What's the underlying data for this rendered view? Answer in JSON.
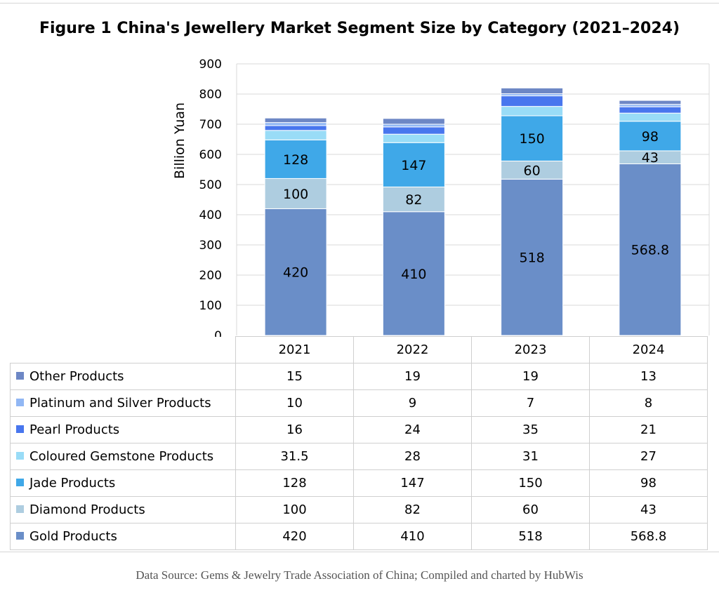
{
  "chart_data": {
    "type": "bar",
    "stacked": true,
    "title": "Figure 1 China's Jewellery Market Segment Size by Category (2021–2024)",
    "ylabel": "Billion Yuan",
    "xlabel": "",
    "ylim": [
      0,
      900
    ],
    "yticks": [
      "0",
      "100",
      "200",
      "300",
      "400",
      "500",
      "600",
      "700",
      "800",
      "900"
    ],
    "grid": true,
    "legend": "table-below",
    "categories": [
      "2021",
      "2022",
      "2023",
      "2024"
    ],
    "series": [
      {
        "name": "Gold Products",
        "color": "#6a8ec8",
        "values": [
          420,
          410,
          518,
          568.8
        ],
        "labels": [
          "420",
          "410",
          "518",
          "568.8"
        ],
        "show_labels": true
      },
      {
        "name": "Diamond Products",
        "color": "#aecde0",
        "values": [
          100,
          82,
          60,
          43
        ],
        "labels": [
          "100",
          "82",
          "60",
          "43"
        ],
        "show_labels": true
      },
      {
        "name": "Jade Products",
        "color": "#3fa8e8",
        "values": [
          128,
          147,
          150,
          98
        ],
        "labels": [
          "128",
          "147",
          "150",
          "98"
        ],
        "show_labels": true
      },
      {
        "name": "Coloured Gemstone Products",
        "color": "#99dcf7",
        "values": [
          31.5,
          28,
          31,
          27
        ],
        "labels": [
          "31.5",
          "28",
          "31",
          "27"
        ],
        "show_labels": false
      },
      {
        "name": "Pearl Products",
        "color": "#4876ee",
        "values": [
          16,
          24,
          35,
          21
        ],
        "labels": [
          "16",
          "24",
          "35",
          "21"
        ],
        "show_labels": false
      },
      {
        "name": "Platinum and Silver Products",
        "color": "#91b7f4",
        "values": [
          10,
          9,
          7,
          8
        ],
        "labels": [
          "10",
          "9",
          "7",
          "8"
        ],
        "show_labels": false
      },
      {
        "name": "Other Products",
        "color": "#6d87c5",
        "values": [
          15,
          19,
          19,
          13
        ],
        "labels": [
          "15",
          "19",
          "19",
          "13"
        ],
        "show_labels": false
      }
    ],
    "table_rows": [
      {
        "name": "Other Products",
        "color": "#6d87c5",
        "cells": [
          "15",
          "19",
          "19",
          "13"
        ]
      },
      {
        "name": "Platinum and Silver Products",
        "color": "#91b7f4",
        "cells": [
          "10",
          "9",
          "7",
          "8"
        ]
      },
      {
        "name": "Pearl Products",
        "color": "#4876ee",
        "cells": [
          "16",
          "24",
          "35",
          "21"
        ]
      },
      {
        "name": "Coloured Gemstone Products",
        "color": "#99dcf7",
        "cells": [
          "31.5",
          "28",
          "31",
          "27"
        ]
      },
      {
        "name": "Jade Products",
        "color": "#3fa8e8",
        "cells": [
          "128",
          "147",
          "150",
          "98"
        ]
      },
      {
        "name": "Diamond Products",
        "color": "#aecde0",
        "cells": [
          "100",
          "82",
          "60",
          "43"
        ]
      },
      {
        "name": "Gold Products",
        "color": "#6a8ec8",
        "cells": [
          "420",
          "410",
          "518",
          "568.8"
        ]
      }
    ]
  },
  "source": "Data Source: Gems & Jewelry Trade Association of China; Compiled and charted by HubWis"
}
